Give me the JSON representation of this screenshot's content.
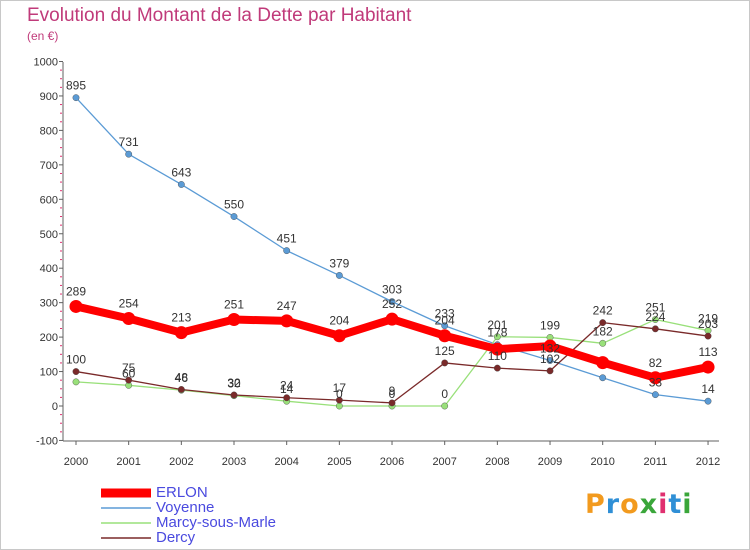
{
  "title": "Evolution du Montant de la Dette par Habitant",
  "subtitle": "(en €)",
  "logo_text": "Proxiti",
  "colors": {
    "title": "#c03a7a",
    "legend_text": "#4a4adf",
    "axis": "#606060",
    "tick_marks": "#e03070"
  },
  "chart_data": {
    "type": "line",
    "x": [
      "2000",
      "2001",
      "2002",
      "2003",
      "2004",
      "2005",
      "2006",
      "2007",
      "2008",
      "2009",
      "2010",
      "2011",
      "2012"
    ],
    "ylim": [
      -100,
      1000
    ],
    "yticks": [
      "-100",
      "0",
      "100",
      "200",
      "300",
      "400",
      "500",
      "600",
      "700",
      "800",
      "900",
      "1000"
    ],
    "grid": false,
    "legend_position": "bottom-left",
    "series": [
      {
        "name": "ERLON",
        "color": "#ff0000",
        "values": [
          289,
          254,
          213,
          251,
          247,
          204,
          252,
          204,
          165,
          174,
          126,
          82,
          113
        ],
        "labels": [
          "289",
          "254",
          "213",
          "251",
          "247",
          "204",
          "252",
          "204",
          "",
          "",
          "",
          "82",
          "113"
        ]
      },
      {
        "name": "Voyenne",
        "color": "#5b9bd5",
        "values": [
          895,
          731,
          643,
          550,
          451,
          379,
          303,
          233,
          178,
          132,
          82,
          33,
          14
        ],
        "labels": [
          "895",
          "731",
          "643",
          "550",
          "451",
          "379",
          "303",
          "233",
          "178",
          "132",
          "",
          "33",
          "14"
        ]
      },
      {
        "name": "Marcy-sous-Marle",
        "color": "#99e07a",
        "values": [
          70,
          60,
          46,
          30,
          14,
          0,
          0,
          0,
          201,
          199,
          182,
          251,
          219
        ],
        "labels": [
          "",
          "60",
          "46",
          "30",
          "14",
          "0",
          "0",
          "0",
          "201",
          "199",
          "182",
          "251",
          "219"
        ]
      },
      {
        "name": "Dercy",
        "color": "#7a2a2a",
        "values": [
          100,
          75,
          48,
          32,
          24,
          17,
          9,
          125,
          110,
          102,
          242,
          224,
          203
        ],
        "labels": [
          "100",
          "75",
          "48",
          "32",
          "24",
          "17",
          "9",
          "125",
          "110",
          "102",
          "242",
          "224",
          "203"
        ]
      }
    ]
  }
}
